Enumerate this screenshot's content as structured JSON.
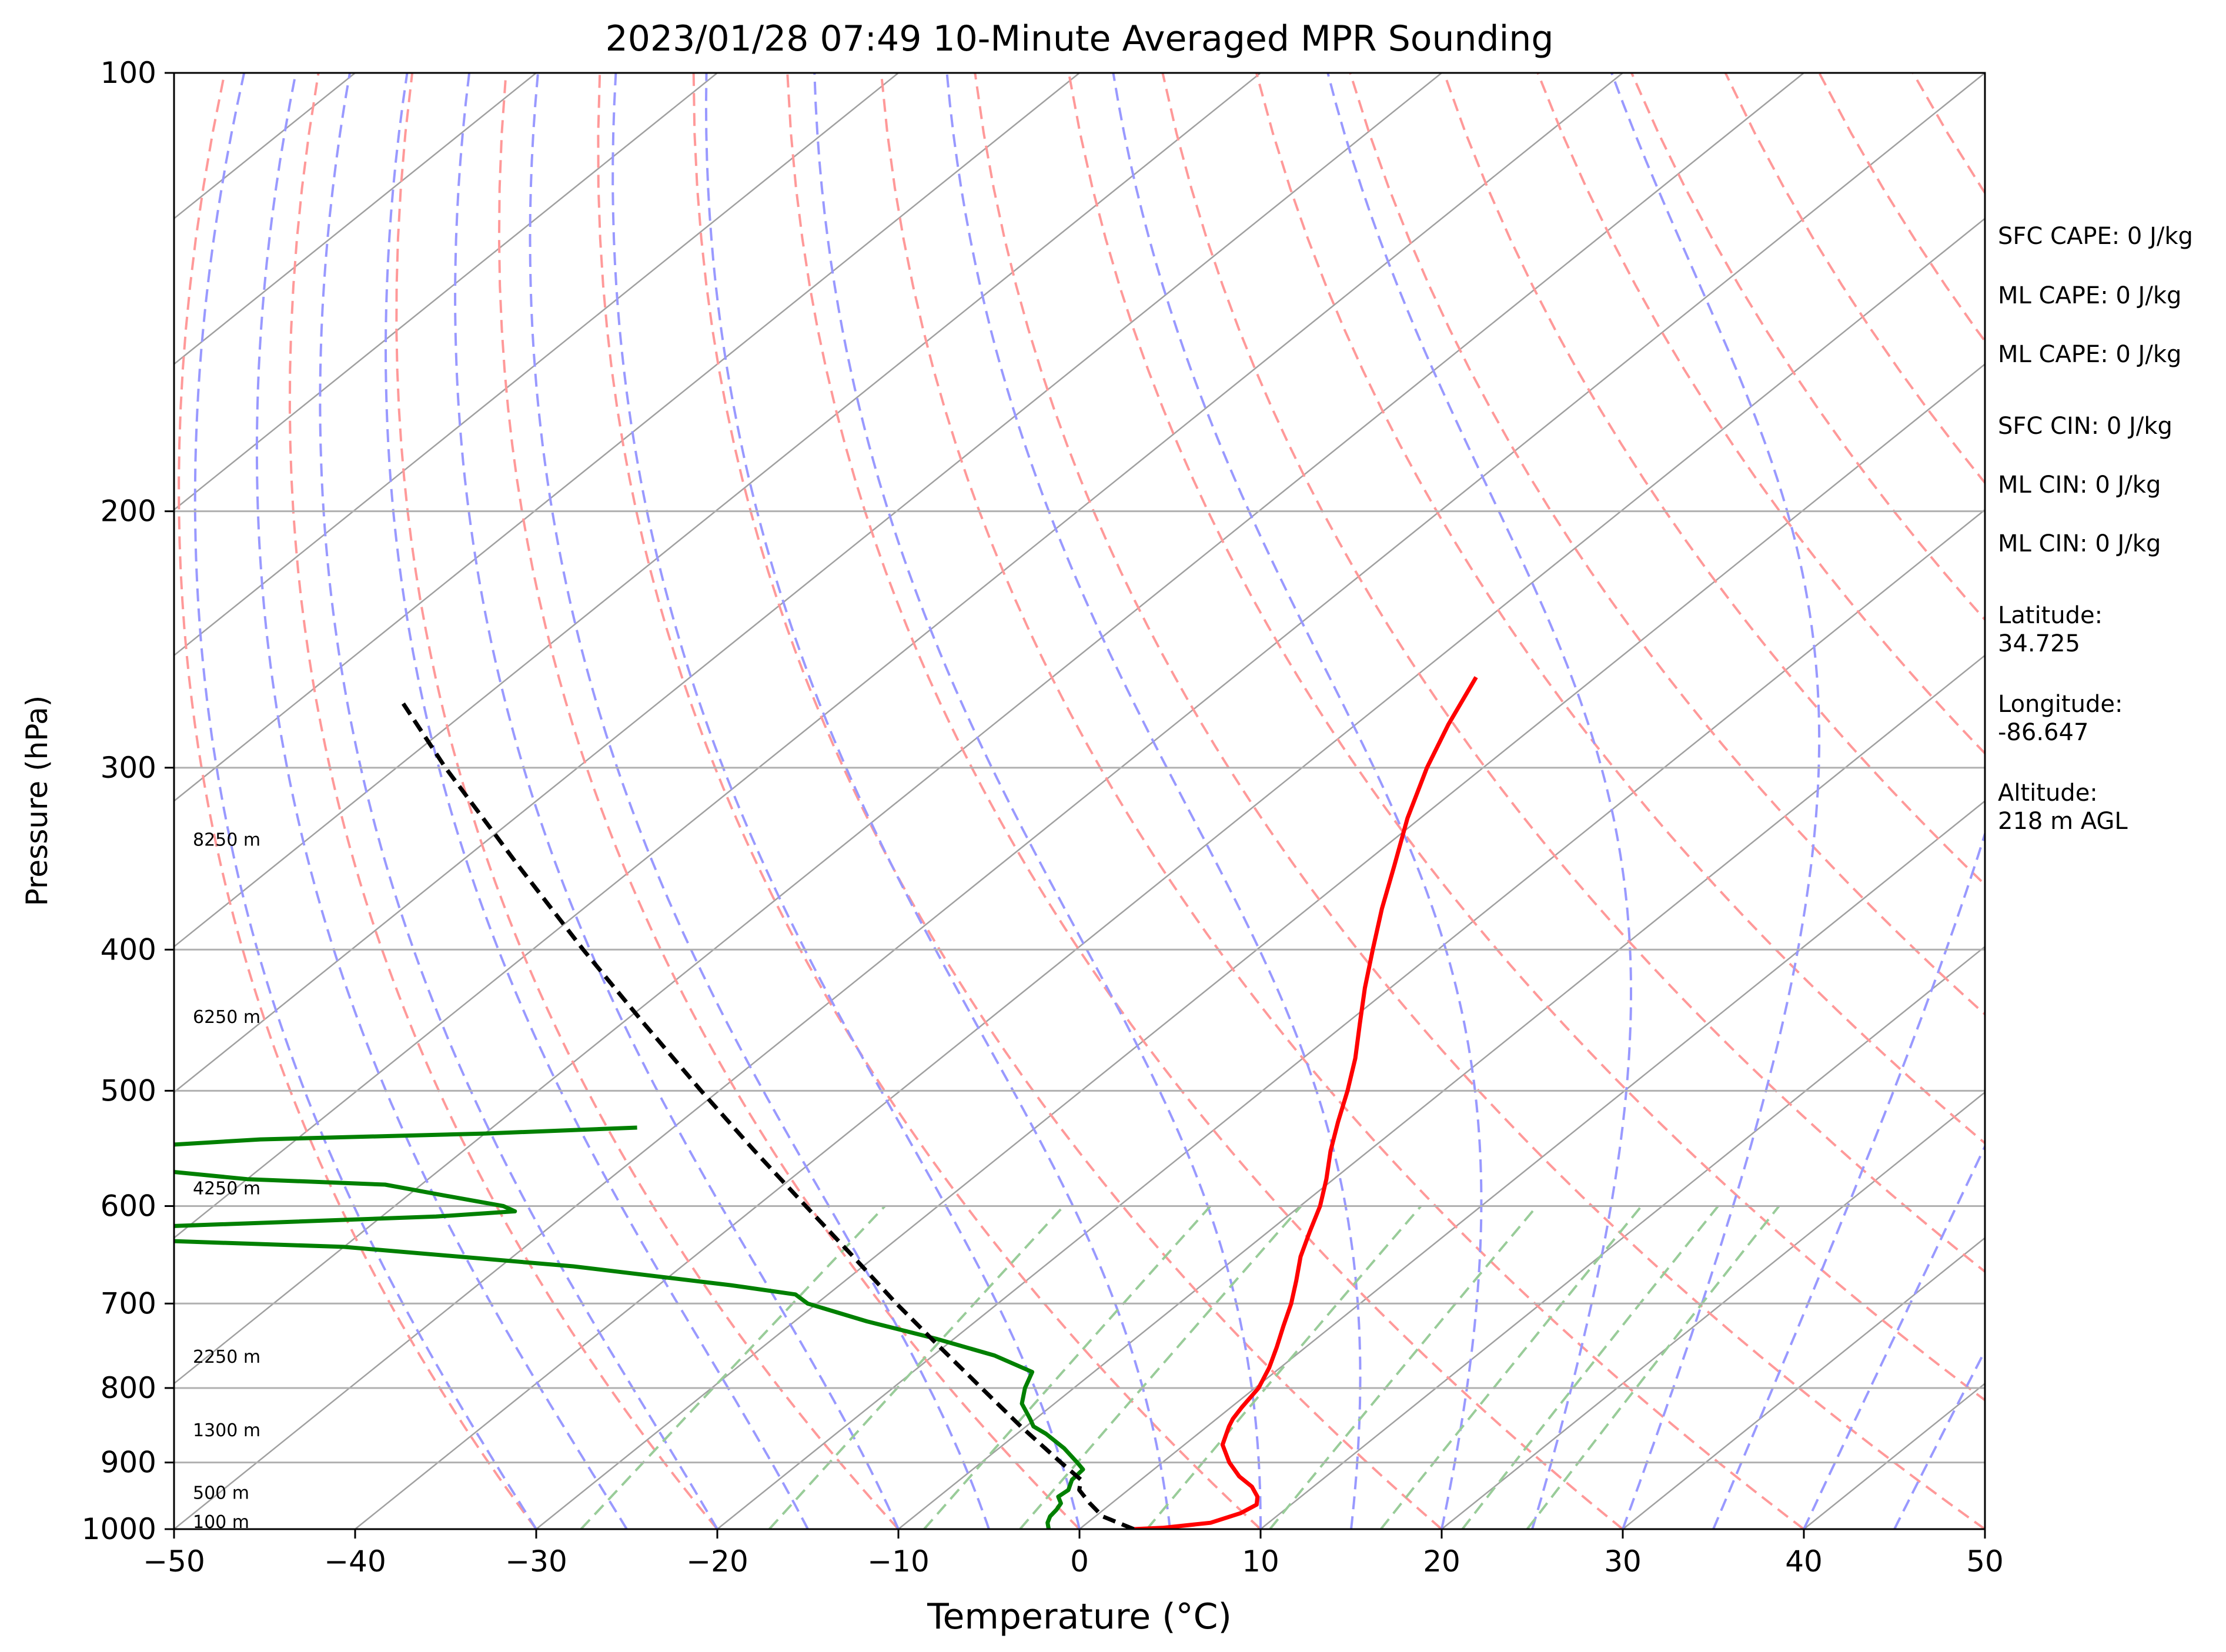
{
  "chart_data": {
    "type": "line",
    "subtype": "skew-t log-p",
    "title": "2023/01/28 07:49 10-Minute Averaged MPR Sounding",
    "xlabel": "Temperature (°C)",
    "ylabel": "Pressure (hPa)",
    "xlim": [
      -50,
      50
    ],
    "ylim": [
      1000,
      100
    ],
    "y_scale": "log",
    "x_ticks": [
      "−50",
      "−40",
      "−30",
      "−20",
      "−10",
      "0",
      "10",
      "20",
      "30",
      "40",
      "50"
    ],
    "y_ticks": [
      "1000",
      "900",
      "800",
      "700",
      "600",
      "500",
      "400",
      "300",
      "200",
      "100"
    ],
    "grid": true,
    "series": [
      {
        "role": "temperature",
        "color": "#ff0000",
        "pressure": [
          1000,
          998,
          990,
          975,
          962,
          950,
          935,
          920,
          900,
          875,
          850,
          840,
          825,
          800,
          775,
          750,
          725,
          700,
          675,
          650,
          625,
          600,
          575,
          550,
          525,
          500,
          475,
          450,
          425,
          400,
          375,
          350,
          325,
          300,
          280,
          260
        ],
        "temperature": [
          3,
          4.5,
          6.8,
          7.8,
          8.1,
          7.6,
          6.6,
          5.2,
          3.7,
          2.1,
          1.2,
          0.9,
          0.6,
          0.2,
          -0.6,
          -1.6,
          -2.7,
          -3.8,
          -5.1,
          -6.5,
          -7.7,
          -8.9,
          -10.4,
          -12.1,
          -13.7,
          -15.3,
          -17.1,
          -19.2,
          -21.4,
          -23.6,
          -25.9,
          -28.2,
          -30.7,
          -33.1,
          -34.9,
          -36.6
        ]
      },
      {
        "role": "dewpoint",
        "color": "#008000",
        "pressure": [
          1000,
          990,
          980,
          970,
          960,
          950,
          940,
          925,
          910,
          900,
          880,
          860,
          850,
          840,
          820,
          800,
          780,
          760,
          740,
          720,
          700,
          690,
          680,
          660,
          640,
          630,
          625,
          620,
          610,
          605,
          600,
          590,
          580,
          575,
          565,
          560,
          545,
          540,
          535,
          530
        ],
        "temperature": [
          -1.7,
          -2.2,
          -2.5,
          -2.6,
          -2.8,
          -3.4,
          -3.3,
          -3.8,
          -3.9,
          -4.7,
          -6.4,
          -8.4,
          -9.6,
          -10.3,
          -11.8,
          -12.7,
          -13.4,
          -16.6,
          -21.0,
          -26.0,
          -30.5,
          -31.8,
          -36.0,
          -46.0,
          -60.0,
          -77.0,
          -82.0,
          -72.0,
          -57.0,
          -53.0,
          -54.0,
          -58.0,
          -62.0,
          -70.0,
          -77.0,
          -79.0,
          -77.0,
          -72.0,
          -60.0,
          -52.0
        ]
      },
      {
        "role": "parcel",
        "color": "#000000",
        "dashed": true,
        "pressure": [
          1000,
          980,
          960,
          940,
          925,
          900,
          850,
          800,
          750,
          700,
          650,
          600,
          550,
          500,
          450,
          400,
          350,
          300,
          270
        ],
        "temperature": [
          3.0,
          0.4,
          -1.2,
          -2.7,
          -3.3,
          -5.6,
          -10.3,
          -15.1,
          -20.2,
          -25.6,
          -31.2,
          -37.3,
          -43.9,
          -51.0,
          -58.7,
          -67.2,
          -76.6,
          -87.3,
          -94.3
        ]
      }
    ],
    "height_labels": [
      {
        "text": "100 m",
        "pressure": 1000
      },
      {
        "text": "500 m",
        "pressure": 955
      },
      {
        "text": "1300 m",
        "pressure": 865
      },
      {
        "text": "2250 m",
        "pressure": 770
      },
      {
        "text": "4250 m",
        "pressure": 590
      },
      {
        "text": "6250 m",
        "pressure": 450
      },
      {
        "text": "8250 m",
        "pressure": 340
      }
    ],
    "reference_lines": {
      "isotherm_color": "#a0a0a0",
      "dry_adiabat_color": "#ff9999",
      "moist_adiabat_color": "#9999ff",
      "mixing_ratio_color": "#99cc99"
    }
  },
  "annotations": {
    "sfc_cape": "SFC CAPE: 0 J/kg",
    "ml_cape_1": "ML CAPE: 0 J/kg",
    "ml_cape_2": "ML CAPE: 0 J/kg",
    "sfc_cin": "SFC CIN: 0 J/kg",
    "ml_cin_1": "ML CIN: 0 J/kg",
    "ml_cin_2": "ML CIN: 0 J/kg",
    "latitude_label": "Latitude:",
    "latitude_value": "34.725",
    "longitude_label": "Longitude:",
    "longitude_value": "-86.647",
    "altitude_label": "Altitude:",
    "altitude_value": "218 m AGL"
  }
}
